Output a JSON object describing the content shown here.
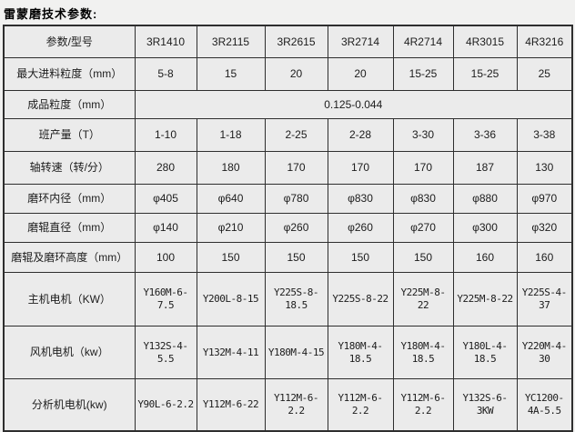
{
  "title": "雷蒙磨技术参数:",
  "colors": {
    "page_background": "#f1f1f0",
    "cell_background": "#ebebeb",
    "border": "#2e2e2e",
    "text": "#1c1c1c"
  },
  "table": {
    "header": [
      "参数/型号",
      "3R1410",
      "3R2115",
      "3R2615",
      "3R2714",
      "4R2714",
      "4R3015",
      "4R3216"
    ],
    "rows": [
      {
        "label": "最大进料粒度（mm）",
        "values": [
          "5-8",
          "15",
          "20",
          "20",
          "15-25",
          "15-25",
          "25"
        ]
      },
      {
        "label": "成品粒度（mm）",
        "merged": true,
        "values": [
          "0.125-0.044"
        ]
      },
      {
        "label": "班产量（T）",
        "values": [
          "1-10",
          "1-18",
          "2-25",
          "2-28",
          "3-30",
          "3-36",
          "3-38"
        ]
      },
      {
        "label": "轴转速（转/分）",
        "values": [
          "280",
          "180",
          "170",
          "170",
          "170",
          "187",
          "130"
        ]
      },
      {
        "label": "磨环内径（mm）",
        "values": [
          "φ405",
          "φ640",
          "φ780",
          "φ830",
          "φ830",
          "φ880",
          "φ970"
        ]
      },
      {
        "label": "磨辊直径（mm）",
        "values": [
          "φ140",
          "φ210",
          "φ260",
          "φ260",
          "φ270",
          "φ300",
          "φ320"
        ]
      },
      {
        "label": "磨辊及磨环高度（mm）",
        "values": [
          "100",
          "150",
          "150",
          "150",
          "150",
          "160",
          "160"
        ]
      },
      {
        "label": "主机电机（KW）",
        "motor": true,
        "values": [
          "Y160M-6-7.5",
          "Y200L-8-15",
          "Y225S-8-18.5",
          "Y225S-8-22",
          "Y225M-8-22",
          "Y225M-8-22",
          "Y225S-4-37"
        ]
      },
      {
        "label": "风机电机（kw）",
        "motor": true,
        "values": [
          "Y132S-4-5.5",
          "Y132M-4-11",
          "Y180M-4-15",
          "Y180M-4-18.5",
          "Y180M-4-18.5",
          "Y180L-4-18.5",
          "Y220M-4-30"
        ]
      },
      {
        "label": "分析机电机(kw)",
        "motor": true,
        "values": [
          "Y90L-6-2.2",
          "Y112M-6-22",
          "Y112M-6-2.2",
          "Y112M-6-2.2",
          "Y112M-6-2.2",
          "Y132S-6-3KW",
          "YC1200-4A-5.5"
        ]
      }
    ]
  }
}
